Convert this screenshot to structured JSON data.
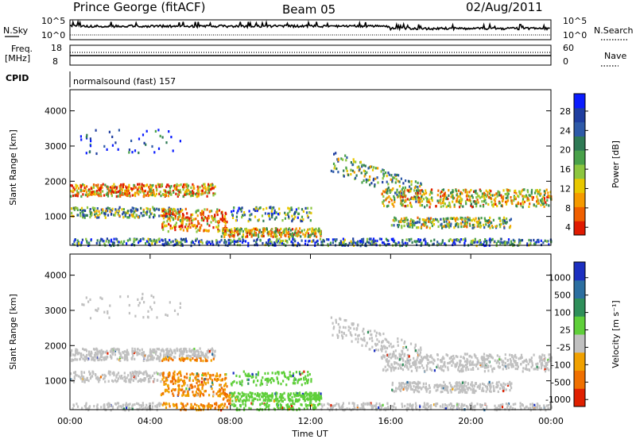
{
  "header": {
    "station": "Prince George (fitACF)",
    "beam": "Beam 05",
    "date": "02/Aug/2011"
  },
  "status_panels": {
    "nsky_label": "N.Sky",
    "nsky_ticks": [
      "10^5",
      "10^0"
    ],
    "nsearch_label": "N.Search",
    "nsearch_ticks": [
      "10^5",
      "10^0"
    ],
    "freq_label_line1": "Freq.",
    "freq_label_line2": "[MHz]",
    "freq_ticks": [
      "18",
      "8"
    ],
    "nave_label": "Nave",
    "nave_ticks": [
      "60",
      "0"
    ],
    "cpid_label": "CPID",
    "cpid_value": "normalsound (fast) 157"
  },
  "chart_data": [
    {
      "type": "heatmap",
      "name": "power",
      "ylabel": "Slant Range [km]",
      "ylim": [
        180,
        4600
      ],
      "yticks": [
        "4000",
        "3000",
        "2000",
        "1000"
      ],
      "yticks_values": [
        4000,
        3000,
        2000,
        1000
      ],
      "xlim_hours": [
        0,
        24
      ],
      "colorbar": {
        "label": "Power [dB]",
        "ticks": [
          "28",
          "24",
          "20",
          "16",
          "12",
          "8",
          "4"
        ],
        "tick_values": [
          28,
          24,
          20,
          16,
          12,
          8,
          4
        ],
        "range": [
          0,
          30
        ],
        "colors": [
          "#0a1cff",
          "#1f3ea0",
          "#2e5aa8",
          "#2f7a55",
          "#49a14a",
          "#8cc63f",
          "#e8c800",
          "#f59a00",
          "#f06000",
          "#e01a00"
        ]
      }
    },
    {
      "type": "heatmap",
      "name": "velocity",
      "ylabel": "Slant Range [km]",
      "ylim": [
        180,
        4600
      ],
      "yticks": [
        "4000",
        "3000",
        "2000",
        "1000"
      ],
      "yticks_values": [
        4000,
        3000,
        2000,
        1000
      ],
      "xlim_hours": [
        0,
        24
      ],
      "xticks": [
        "00:00",
        "04:00",
        "08:00",
        "12:00",
        "16:00",
        "20:00",
        "00:00"
      ],
      "xticks_values": [
        0,
        4,
        8,
        12,
        16,
        20,
        24
      ],
      "xlabel": "Time UT",
      "colorbar": {
        "label": "Velocity [m s⁻¹]",
        "ticks": [
          "1000",
          "500",
          "100",
          "25",
          "-25",
          "-100",
          "-500",
          "-1000"
        ],
        "colors": [
          "#1c2fc0",
          "#2c6fa0",
          "#2f8f5a",
          "#5fcf3a",
          "#c0c0c0",
          "#f0a000",
          "#f07000",
          "#e02000"
        ]
      }
    }
  ]
}
